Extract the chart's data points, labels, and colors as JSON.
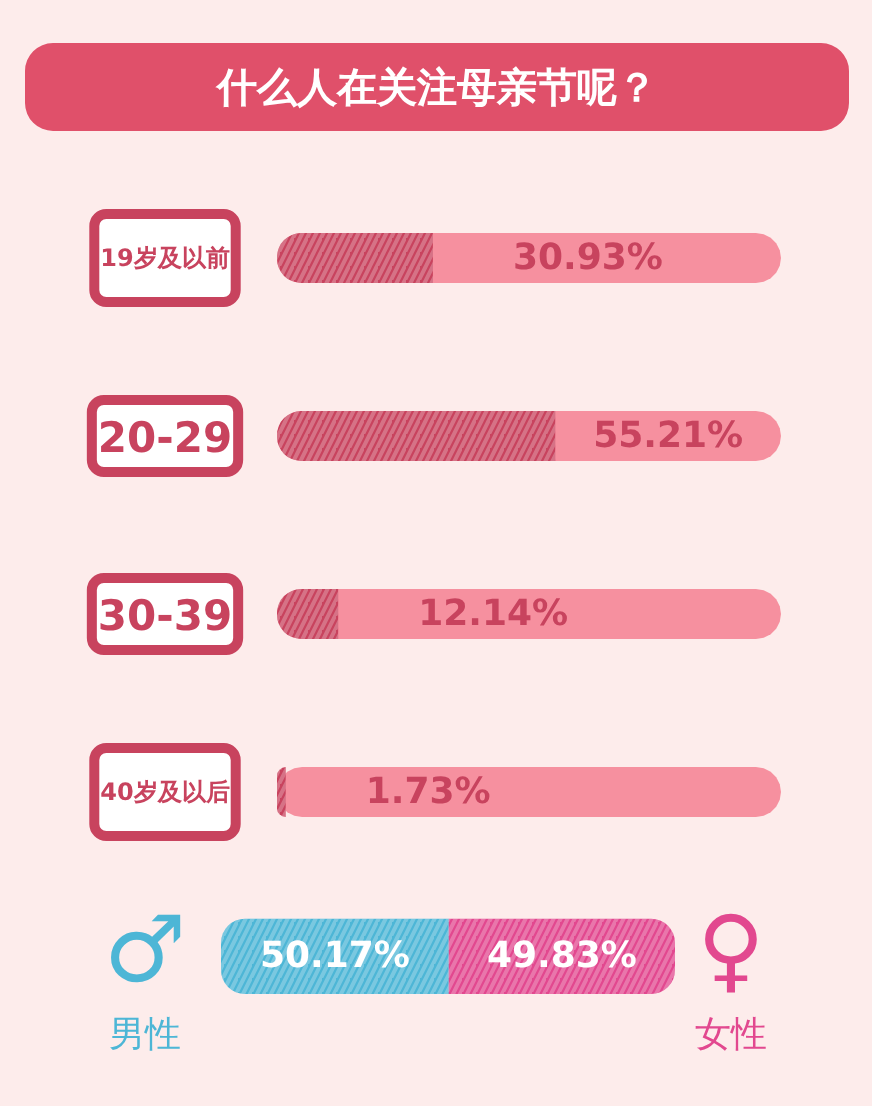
{
  "chart_data": [
    {
      "type": "bar",
      "title": "什么人在关注母亲节呢？",
      "orientation": "horizontal",
      "categories": [
        "19岁及以前",
        "20-29",
        "30-39",
        "40岁及以后"
      ],
      "values": [
        30.93,
        55.21,
        12.14,
        1.73
      ],
      "value_labels": [
        "30.93%",
        "55.21%",
        "12.14%",
        "1.73%"
      ],
      "color": "#c8435e",
      "xlim": [
        0,
        100
      ],
      "bands": [
        {
          "axis": "x",
          "from": 0,
          "to": 100,
          "color": "#f6909f"
        },
        {
          "axis": "x",
          "from": 0,
          "to": 100,
          "color": "#f6909f"
        },
        {
          "axis": "x",
          "from": 0,
          "to": 100,
          "color": "#f6909f"
        },
        {
          "axis": "x",
          "from": 0,
          "to": 100,
          "color": "#f6909f"
        }
      ],
      "tick_labels": "y"
    },
    {
      "type": "bar",
      "orientation": "horizontal",
      "stacked": true,
      "categories": [
        null
      ],
      "series": [
        {
          "name": "男性",
          "color": "#4db6d6",
          "values": [
            50.17
          ],
          "value_labels": [
            "50.17%"
          ]
        },
        {
          "name": "女性",
          "color": "#e2488f",
          "values": [
            49.83
          ],
          "value_labels": [
            "49.83%"
          ]
        }
      ],
      "tick_labels": false,
      "annotations": [
        "♂",
        "♀"
      ]
    }
  ]
}
